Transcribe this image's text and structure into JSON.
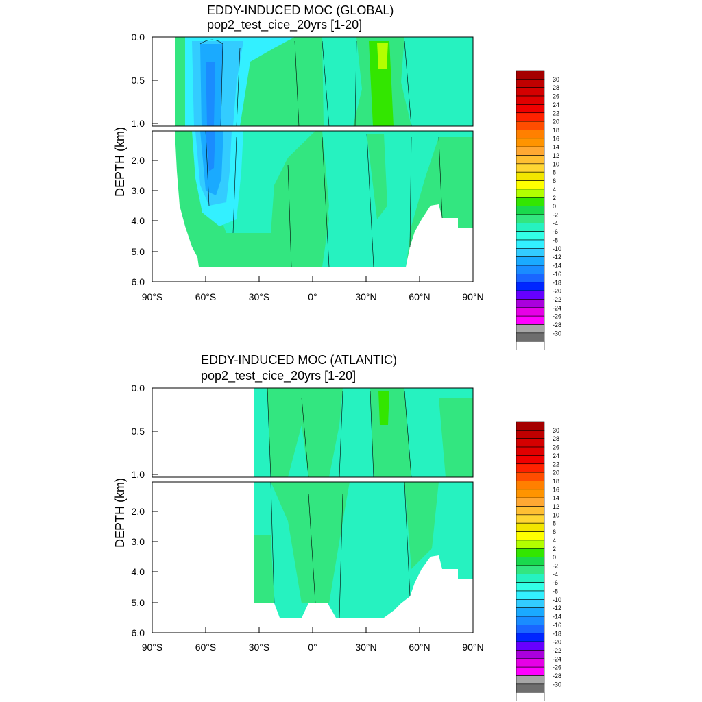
{
  "chart_data": [
    {
      "type": "heatmap",
      "title": "EDDY-INDUCED MOC (GLOBAL)",
      "subtitle": "pop2_test_cice_20yrs [1-20]",
      "ylabel": "DEPTH (km)",
      "xlabel": "",
      "x_ticks": [
        "90°S",
        "60°S",
        "30°S",
        "0°",
        "30°N",
        "60°N",
        "90°N"
      ],
      "y_ticks_upper": [
        "0.0",
        "0.5",
        "1.0"
      ],
      "y_ticks_lower": [
        "2.0",
        "3.0",
        "4.0",
        "5.0",
        "6.0"
      ],
      "xlim": [
        -90,
        90
      ],
      "ylim_upper_km": [
        0,
        1
      ],
      "ylim_lower_km": [
        1,
        6
      ],
      "features": [
        {
          "name": "southern-negative-cell",
          "lat": [
            -70,
            -35
          ],
          "depth_km": [
            0,
            4.8
          ],
          "value": -10
        },
        {
          "name": "southern-core",
          "lat": [
            -62,
            -52
          ],
          "depth_km": [
            0.2,
            3.0
          ],
          "value": -14
        },
        {
          "name": "interior-negative",
          "lat": [
            -30,
            50
          ],
          "depth_km": [
            1.2,
            5.5
          ],
          "value": -2
        },
        {
          "name": "northern-positive",
          "lat": [
            32,
            45
          ],
          "depth_km": [
            0,
            1.0
          ],
          "value": 4
        },
        {
          "name": "equatorial-positive",
          "lat": [
            -10,
            10
          ],
          "depth_km": [
            1.2,
            5.5
          ],
          "value": 1
        }
      ]
    },
    {
      "type": "heatmap",
      "title": "EDDY-INDUCED MOC (ATLANTIC)",
      "subtitle": "pop2_test_cice_20yrs [1-20]",
      "ylabel": "DEPTH (km)",
      "xlabel": "",
      "x_ticks": [
        "90°S",
        "60°S",
        "30°S",
        "0°",
        "30°N",
        "60°N",
        "90°N"
      ],
      "y_ticks_upper": [
        "0.0",
        "0.5",
        "1.0"
      ],
      "y_ticks_lower": [
        "2.0",
        "3.0",
        "4.0",
        "5.0",
        "6.0"
      ],
      "xlim": [
        -90,
        90
      ],
      "ylim_upper_km": [
        0,
        1
      ],
      "ylim_lower_km": [
        1,
        6
      ],
      "features": [
        {
          "name": "southern-negative",
          "lat": [
            -33,
            -5
          ],
          "depth_km": [
            0,
            5.0
          ],
          "value": -2
        },
        {
          "name": "northern-positive",
          "lat": [
            35,
            45
          ],
          "depth_km": [
            0,
            0.8
          ],
          "value": 4
        },
        {
          "name": "deep-negative",
          "lat": [
            10,
            50
          ],
          "depth_km": [
            1.2,
            5.3
          ],
          "value": -2
        }
      ]
    }
  ],
  "colorbar": {
    "labels": [
      "30",
      "28",
      "26",
      "24",
      "22",
      "20",
      "18",
      "16",
      "14",
      "12",
      "10",
      "8",
      "6",
      "4",
      "2",
      "0",
      "-2",
      "-4",
      "-6",
      "-8",
      "-10",
      "-12",
      "-14",
      "-16",
      "-18",
      "-20",
      "-22",
      "-24",
      "-26",
      "-28",
      "-30"
    ],
    "colors": [
      "#a50000",
      "#bf0000",
      "#d40000",
      "#e00000",
      "#f00000",
      "#ff2200",
      "#ff4d00",
      "#ff8000",
      "#ff9400",
      "#ffa833",
      "#ffbf33",
      "#ffd633",
      "#f2e600",
      "#ffff00",
      "#b3ff00",
      "#33e600",
      "#1ad94d",
      "#33e680",
      "#26f2c0",
      "#33ffe6",
      "#33f0ff",
      "#33ccff",
      "#1aaaff",
      "#1a8cff",
      "#1a66ff",
      "#0026ff",
      "#6600ff",
      "#aa00dd",
      "#e600e6",
      "#ff00ff",
      "#a6a6a6",
      "#6e6e6e",
      "#ffffff"
    ]
  }
}
